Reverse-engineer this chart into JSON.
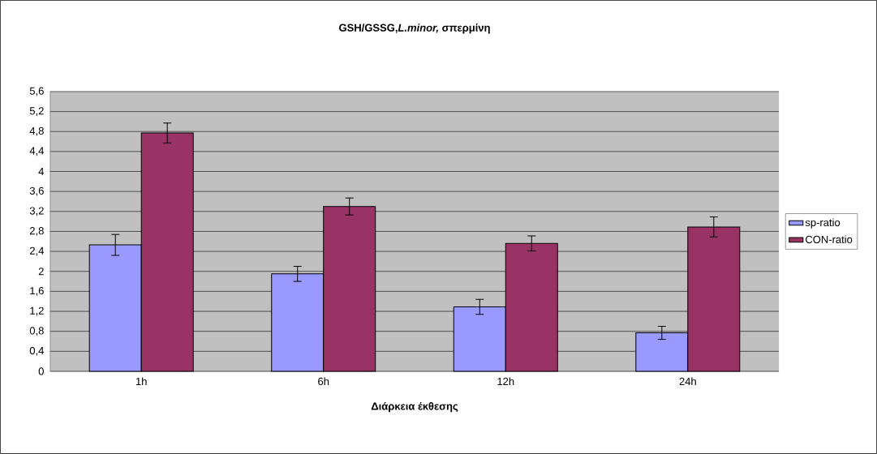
{
  "chart_data": {
    "type": "bar",
    "title": "GSH/GSSG,*L.minor,* σπερμίνη",
    "xlabel": "Διάρκεια έκθεσης",
    "categories": [
      "1h",
      "6h",
      "12h",
      "24h"
    ],
    "series": [
      {
        "name": "sp-ratio",
        "color": "#9999ff",
        "values": [
          2.53,
          1.95,
          1.29,
          0.77
        ],
        "errors": [
          0.21,
          0.15,
          0.15,
          0.13
        ]
      },
      {
        "name": "CON-ratio",
        "color": "#993366",
        "values": [
          4.77,
          3.3,
          2.56,
          2.89
        ],
        "errors": [
          0.2,
          0.17,
          0.15,
          0.2
        ]
      }
    ],
    "ylim": [
      0,
      5.6
    ],
    "yticks": [
      0,
      {
        "value": 0.4,
        "label": "0,4"
      },
      {
        "value": 0.8,
        "label": "0,8"
      },
      {
        "value": 1.2,
        "label": "1,2"
      },
      {
        "value": 1.6,
        "label": "1,6"
      },
      2,
      {
        "value": 2.4,
        "label": "2,4"
      },
      {
        "value": 2.8,
        "label": "2,8"
      },
      {
        "value": 3.2,
        "label": "3,2"
      },
      {
        "value": 3.6,
        "label": "3,6"
      },
      4,
      {
        "value": 4.4,
        "label": "4,4"
      },
      {
        "value": 4.8,
        "label": "4,8"
      },
      {
        "value": 5.2,
        "label": "5,2"
      },
      {
        "value": 5.6,
        "label": "5,6"
      }
    ],
    "grid": "y",
    "legend": "right"
  }
}
